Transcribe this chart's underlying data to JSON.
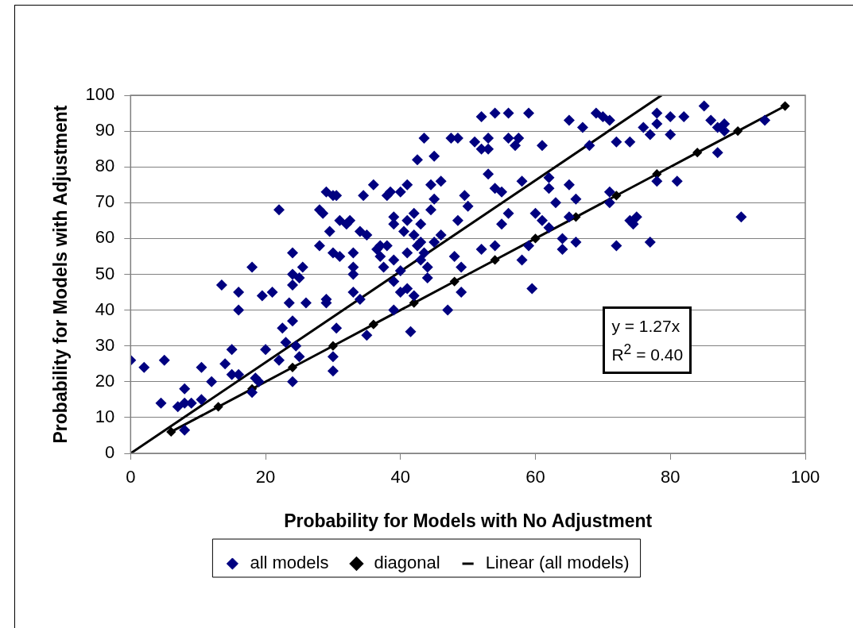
{
  "chart_data": {
    "type": "scatter",
    "xlabel": "Probability for Models with No Adjustment",
    "ylabel": "Probability for Models with Adjustment",
    "xlim": [
      0,
      100
    ],
    "xticks": [
      0,
      20,
      40,
      60,
      80,
      100
    ],
    "ylim": [
      0,
      100
    ],
    "yticks": [
      0,
      10,
      20,
      30,
      40,
      50,
      60,
      70,
      80,
      90,
      100
    ],
    "grid": "y",
    "legend": "bottom",
    "line_style": "solid",
    "annotations": [
      "y = 1.27x",
      "R$^{2}$ = 0.40"
    ],
    "series": [
      {
        "name": "all models",
        "type": "scatter",
        "marker": "diamond",
        "color": "#000080",
        "x": [
          0,
          2,
          5,
          4.5,
          7,
          8,
          8,
          8,
          9,
          10.5,
          10.5,
          12,
          13.5,
          14,
          15,
          15,
          16,
          16,
          16,
          18,
          18,
          18.5,
          19,
          19.5,
          20,
          21,
          22,
          22,
          22.5,
          23,
          23.5,
          24,
          24,
          24,
          24,
          24,
          24.5,
          25,
          25,
          25.5,
          26,
          28,
          28,
          28.5,
          29,
          29,
          29,
          29.5,
          30,
          30,
          30,
          30,
          30.5,
          30.5,
          31,
          31,
          32,
          32.5,
          33,
          33,
          33,
          33,
          34,
          34,
          34.5,
          35,
          35,
          36,
          36.5,
          37,
          37,
          37.5,
          38,
          38,
          38.5,
          39,
          39,
          39,
          39,
          39,
          40,
          40,
          40,
          40.5,
          41,
          41,
          41,
          41,
          41.5,
          42,
          42,
          42,
          42.5,
          42.5,
          43,
          43,
          43,
          43.5,
          43.5,
          44,
          44,
          44.5,
          44.5,
          45,
          45,
          45,
          46,
          46,
          47,
          47.5,
          48,
          48.5,
          48.5,
          49,
          49,
          49.5,
          50,
          51,
          52,
          52,
          52,
          53,
          53,
          53,
          54,
          54,
          54,
          55,
          55,
          56,
          56,
          56,
          57,
          57.5,
          58,
          58,
          59,
          59,
          59.5,
          60,
          61,
          61,
          62,
          62,
          62,
          63,
          64,
          64,
          65,
          65,
          65,
          66,
          66,
          67,
          68,
          69,
          70,
          71,
          71,
          71,
          72,
          72,
          74,
          74,
          74.5,
          75,
          76,
          77,
          77,
          78,
          78,
          78,
          80,
          80,
          81,
          82,
          85,
          86,
          87,
          87,
          88,
          88,
          90.5,
          94
        ],
        "values": [
          26,
          24,
          26,
          14,
          13,
          14,
          18,
          6.5,
          14,
          24,
          15,
          20,
          47,
          25,
          22,
          29,
          22,
          45,
          40,
          52,
          17,
          21,
          20,
          44,
          29,
          45,
          26,
          68,
          35,
          31,
          42,
          37,
          56,
          50,
          47,
          20,
          30,
          27,
          49,
          52,
          42,
          58,
          68,
          67,
          73,
          42,
          43,
          62,
          72,
          56,
          27,
          23,
          72,
          35,
          55,
          65,
          64,
          65,
          45,
          52,
          50,
          56,
          62,
          43,
          72,
          61,
          33,
          75,
          57,
          55,
          58,
          52,
          72,
          58,
          73,
          66,
          64,
          54,
          48,
          40,
          51,
          73,
          45,
          62,
          65,
          56,
          75,
          46,
          34,
          61,
          44,
          67,
          82,
          58,
          64,
          59,
          54,
          88,
          56,
          52,
          49,
          75,
          68,
          71,
          83,
          59,
          76,
          61,
          40,
          88,
          55,
          88,
          65,
          52,
          45,
          72,
          69,
          87,
          94,
          85,
          57,
          88,
          85,
          78,
          95,
          74,
          58,
          73,
          64,
          95,
          88,
          67,
          86,
          88,
          76,
          54,
          95,
          58,
          46,
          67,
          86,
          65,
          77,
          74,
          63,
          70,
          57,
          60,
          93,
          75,
          66,
          71,
          59,
          91,
          86,
          95,
          94,
          93,
          73,
          70,
          87,
          58,
          87,
          65,
          64,
          66,
          91,
          89,
          59,
          95,
          92,
          76,
          94,
          89,
          76,
          94,
          97,
          93,
          91,
          84,
          92,
          90,
          66,
          93
        ]
      },
      {
        "name": "diagonal",
        "type": "line",
        "marker": "diamond",
        "color": "#000000",
        "x": [
          6,
          13,
          18,
          24,
          30,
          36,
          42,
          48,
          54,
          60,
          66,
          72,
          78,
          84,
          90,
          97
        ],
        "values": [
          6,
          13,
          18,
          24,
          30,
          36,
          42,
          48,
          54,
          60,
          66,
          72,
          78,
          84,
          90,
          97
        ]
      },
      {
        "name": "Linear (all models)",
        "type": "line",
        "marker": "none",
        "color": "#000000",
        "x": [
          0,
          78.7
        ],
        "values": [
          0,
          100
        ]
      }
    ]
  }
}
